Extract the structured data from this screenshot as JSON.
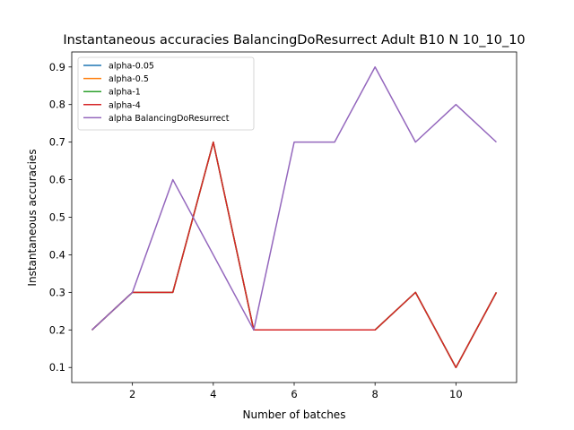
{
  "chart_data": {
    "type": "line",
    "title": "Instantaneous accuracies BalancingDoResurrect Adult B10 N 10_10_10",
    "xlabel": "Number of batches",
    "ylabel": "Instantaneous accuracies",
    "xlim": [
      0.5,
      11.5
    ],
    "ylim": [
      0.06,
      0.94
    ],
    "xticks": [
      2,
      4,
      6,
      8,
      10
    ],
    "yticks": [
      0.1,
      0.2,
      0.3,
      0.4,
      0.5,
      0.6,
      0.7,
      0.8,
      0.9
    ],
    "grid": false,
    "legend_position": "top-left",
    "x": [
      1,
      2,
      3,
      4,
      5,
      6,
      7,
      8,
      9,
      10,
      11
    ],
    "series": [
      {
        "name": "alpha-0.05",
        "color": "#1f77b4",
        "values": [
          0.2,
          0.3,
          0.3,
          0.7,
          0.2,
          0.2,
          0.2,
          0.2,
          0.3,
          0.1,
          0.3
        ]
      },
      {
        "name": "alpha-0.5",
        "color": "#ff7f0e",
        "values": [
          0.2,
          0.3,
          0.3,
          0.7,
          0.2,
          0.2,
          0.2,
          0.2,
          0.3,
          0.1,
          0.3
        ]
      },
      {
        "name": "alpha-1",
        "color": "#2ca02c",
        "values": [
          0.2,
          0.3,
          0.3,
          0.7,
          0.2,
          0.2,
          0.2,
          0.2,
          0.3,
          0.1,
          0.3
        ]
      },
      {
        "name": "alpha-4",
        "color": "#d62728",
        "values": [
          0.2,
          0.3,
          0.3,
          0.7,
          0.2,
          0.2,
          0.2,
          0.2,
          0.3,
          0.1,
          0.3
        ]
      },
      {
        "name": "alpha BalancingDoResurrect",
        "color": "#9467bd",
        "values": [
          0.2,
          0.3,
          0.6,
          0.4,
          0.2,
          0.7,
          0.7,
          0.9,
          0.7,
          0.8,
          0.7
        ]
      }
    ]
  }
}
